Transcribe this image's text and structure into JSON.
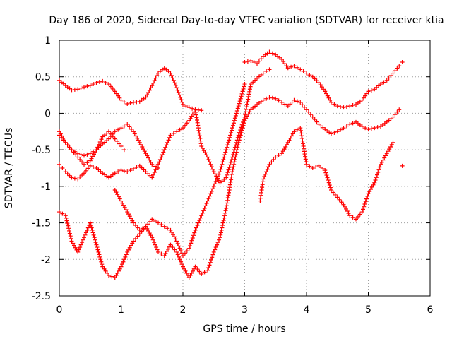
{
  "chart_data": {
    "type": "scatter",
    "title": "Day 186 of 2020, Sidereal Day-to-day VTEC variation (SDTVAR) for receiver ktia",
    "xlabel": "GPS time / hours",
    "ylabel": "SDTVAR / TECUs",
    "xlim": [
      0,
      6
    ],
    "ylim": [
      -2.5,
      1
    ],
    "xticks": [
      "0",
      "1",
      "2",
      "3",
      "4",
      "5",
      "6"
    ],
    "yticks": [
      "1",
      "0.5",
      "0",
      "-0.5",
      "-1",
      "-1.5",
      "-2",
      "-2.5"
    ],
    "grid": true,
    "marker": "plus",
    "color": "#ff0000",
    "series": [
      {
        "x": [
          0.0,
          0.1,
          0.2,
          0.3,
          0.4,
          0.5,
          0.6,
          0.7,
          0.8,
          0.9,
          1.0,
          1.1,
          1.2,
          1.3,
          1.4,
          1.5,
          1.6,
          1.7,
          1.8,
          1.9,
          2.0,
          2.1,
          2.2,
          2.3
        ],
        "y": [
          0.45,
          0.38,
          0.32,
          0.33,
          0.36,
          0.38,
          0.42,
          0.44,
          0.4,
          0.3,
          0.18,
          0.13,
          0.15,
          0.16,
          0.22,
          0.38,
          0.55,
          0.62,
          0.55,
          0.35,
          0.12,
          0.08,
          0.05,
          0.04
        ]
      },
      {
        "x": [
          3.0,
          3.1,
          3.2,
          3.3,
          3.4,
          3.5,
          3.6,
          3.7,
          3.8,
          3.9,
          4.0,
          4.1,
          4.2,
          4.3,
          4.4,
          4.5,
          4.6,
          4.7,
          4.8,
          4.9,
          5.0,
          5.1,
          5.2,
          5.3,
          5.4,
          5.5,
          5.55
        ],
        "y": [
          0.7,
          0.72,
          0.68,
          0.78,
          0.84,
          0.8,
          0.74,
          0.62,
          0.65,
          0.6,
          0.55,
          0.5,
          0.42,
          0.3,
          0.15,
          0.1,
          0.08,
          0.1,
          0.12,
          0.18,
          0.3,
          0.33,
          0.4,
          0.45,
          0.55,
          0.65,
          0.7
        ]
      },
      {
        "x": [
          0.0,
          0.05,
          0.1,
          0.2,
          0.3,
          0.4,
          0.5,
          0.6,
          0.7,
          0.8,
          0.9,
          1.0,
          1.1,
          1.2,
          1.3,
          1.4,
          1.5,
          1.6,
          1.7,
          1.8,
          1.9,
          2.0,
          2.1,
          2.2,
          2.3,
          2.4,
          2.5,
          2.6,
          2.7,
          2.8,
          2.9,
          3.0,
          3.1,
          3.2,
          3.3,
          3.4
        ],
        "y": [
          -0.7,
          -0.75,
          -0.8,
          -0.88,
          -0.9,
          -0.82,
          -0.72,
          -0.75,
          -0.82,
          -0.88,
          -0.82,
          -0.78,
          -0.8,
          -0.76,
          -0.72,
          -0.8,
          -0.88,
          -0.7,
          -0.5,
          -0.3,
          -0.25,
          -0.2,
          -0.1,
          0.05,
          -0.45,
          -0.6,
          -0.8,
          -0.95,
          -0.88,
          -0.6,
          -0.3,
          -0.05,
          0.4,
          0.48,
          0.55,
          0.6
        ]
      },
      {
        "x": [
          0.0,
          0.1,
          0.2,
          0.3,
          0.4,
          0.5,
          0.6,
          0.7,
          0.8,
          0.9,
          1.0,
          1.1,
          1.2,
          1.3,
          1.4,
          1.5,
          1.6
        ],
        "y": [
          -0.3,
          -0.4,
          -0.5,
          -0.55,
          -0.58,
          -0.55,
          -0.5,
          -0.42,
          -0.35,
          -0.25,
          -0.2,
          -0.15,
          -0.25,
          -0.4,
          -0.55,
          -0.7,
          -0.75
        ]
      },
      {
        "x": [
          0.0,
          0.1,
          0.2,
          0.3,
          0.4,
          0.5,
          0.6,
          0.7,
          0.8,
          0.9,
          1.0,
          1.05
        ],
        "y": [
          -0.25,
          -0.4,
          -0.5,
          -0.6,
          -0.7,
          -0.65,
          -0.5,
          -0.32,
          -0.25,
          -0.35,
          -0.45,
          -0.5
        ]
      },
      {
        "x": [
          0.0,
          0.1,
          0.2,
          0.3,
          0.4,
          0.5,
          0.6,
          0.7,
          0.8,
          0.9,
          1.0,
          1.1,
          1.2,
          1.3,
          1.4,
          1.5,
          1.6,
          1.7,
          1.8,
          1.9,
          2.0,
          2.1,
          2.2,
          2.3,
          2.4,
          2.5,
          2.6,
          2.7,
          2.8,
          2.9,
          3.0,
          3.1,
          3.2,
          3.3,
          3.4,
          3.5,
          3.6,
          3.7,
          3.8,
          3.9,
          4.0,
          4.1,
          4.2,
          4.3,
          4.4,
          4.5,
          4.6,
          4.7,
          4.8,
          4.9,
          5.0,
          5.1,
          5.2,
          5.3,
          5.4,
          5.5
        ],
        "y": [
          -1.35,
          -1.4,
          -1.75,
          -1.9,
          -1.7,
          -1.5,
          -1.8,
          -2.1,
          -2.22,
          -2.25,
          -2.1,
          -1.9,
          -1.75,
          -1.65,
          -1.55,
          -1.7,
          -1.9,
          -1.95,
          -1.8,
          -1.9,
          -2.1,
          -2.25,
          -2.1,
          -2.2,
          -2.15,
          -1.9,
          -1.7,
          -1.3,
          -0.8,
          -0.4,
          -0.1,
          0.05,
          0.12,
          0.18,
          0.22,
          0.2,
          0.15,
          0.1,
          0.18,
          0.15,
          0.05,
          -0.05,
          -0.15,
          -0.22,
          -0.28,
          -0.25,
          -0.2,
          -0.15,
          -0.12,
          -0.18,
          -0.22,
          -0.2,
          -0.18,
          -0.12,
          -0.05,
          0.05
        ]
      },
      {
        "x": [
          0.9,
          1.0,
          1.1,
          1.2,
          1.3,
          1.4,
          1.5,
          1.6,
          1.7,
          1.8,
          1.9,
          2.0,
          2.1,
          2.2,
          2.3,
          2.4,
          2.5,
          2.6,
          2.7,
          2.8,
          2.9,
          3.0
        ],
        "y": [
          -1.05,
          -1.2,
          -1.35,
          -1.5,
          -1.6,
          -1.55,
          -1.45,
          -1.5,
          -1.55,
          -1.6,
          -1.75,
          -1.95,
          -1.85,
          -1.6,
          -1.4,
          -1.2,
          -1.0,
          -0.8,
          -0.5,
          -0.2,
          0.1,
          0.4
        ]
      },
      {
        "x": [
          3.25,
          3.3,
          3.4,
          3.5,
          3.6,
          3.7,
          3.8,
          3.9,
          4.0,
          4.1,
          4.2,
          4.3,
          4.4,
          4.5,
          4.6,
          4.7,
          4.8,
          4.9,
          5.0,
          5.1,
          5.2,
          5.3,
          5.4
        ],
        "y": [
          -1.2,
          -0.9,
          -0.7,
          -0.6,
          -0.55,
          -0.4,
          -0.25,
          -0.2,
          -0.7,
          -0.75,
          -0.72,
          -0.78,
          -1.05,
          -1.15,
          -1.25,
          -1.4,
          -1.45,
          -1.35,
          -1.1,
          -0.95,
          -0.7,
          -0.55,
          -0.4
        ]
      },
      {
        "x": [
          5.55
        ],
        "y": [
          -0.72
        ]
      }
    ]
  }
}
